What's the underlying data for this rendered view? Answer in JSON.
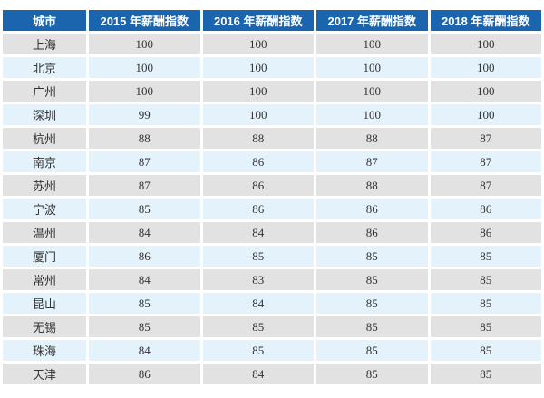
{
  "colors": {
    "header_bg": "#1b64ae",
    "header_text": "#ffffff",
    "row_odd_bg": "#e2e2e2",
    "row_even_bg": "#e4f2fc",
    "cell_text": "#333333",
    "page_bg": "#ffffff"
  },
  "chart_data": {
    "type": "table",
    "columns": [
      "城市",
      "2015 年薪酬指数",
      "2016 年薪酬指数",
      "2017 年薪酬指数",
      "2018 年薪酬指数"
    ],
    "rows": [
      {
        "city": "上海",
        "values": [
          100,
          100,
          100,
          100
        ]
      },
      {
        "city": "北京",
        "values": [
          100,
          100,
          100,
          100
        ]
      },
      {
        "city": "广州",
        "values": [
          100,
          100,
          100,
          100
        ]
      },
      {
        "city": "深圳",
        "values": [
          99,
          100,
          100,
          100
        ]
      },
      {
        "city": "杭州",
        "values": [
          88,
          88,
          88,
          87
        ]
      },
      {
        "city": "南京",
        "values": [
          87,
          86,
          87,
          87
        ]
      },
      {
        "city": "苏州",
        "values": [
          87,
          86,
          88,
          87
        ]
      },
      {
        "city": "宁波",
        "values": [
          85,
          86,
          86,
          86
        ]
      },
      {
        "city": "温州",
        "values": [
          84,
          84,
          86,
          86
        ]
      },
      {
        "city": "厦门",
        "values": [
          86,
          85,
          85,
          85
        ]
      },
      {
        "city": "常州",
        "values": [
          84,
          83,
          85,
          85
        ]
      },
      {
        "city": "昆山",
        "values": [
          85,
          84,
          85,
          85
        ]
      },
      {
        "city": "无锡",
        "values": [
          85,
          85,
          85,
          85
        ]
      },
      {
        "city": "珠海",
        "values": [
          84,
          85,
          85,
          85
        ]
      },
      {
        "city": "天津",
        "values": [
          86,
          84,
          85,
          85
        ]
      }
    ]
  }
}
